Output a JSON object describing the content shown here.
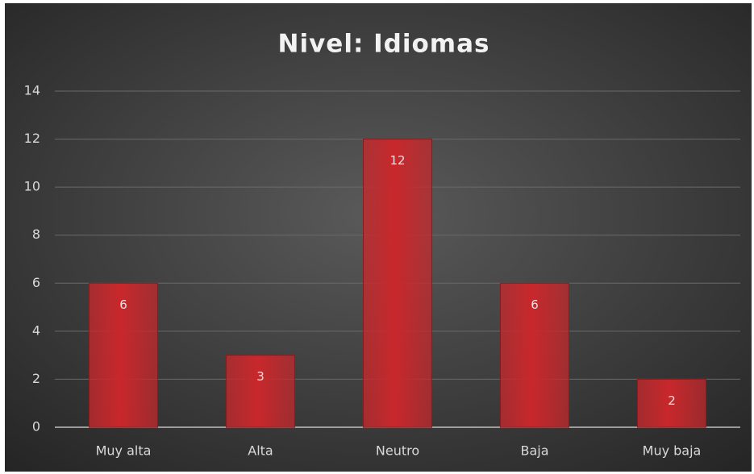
{
  "chart_data": {
    "type": "bar",
    "title": "Nivel: Idiomas",
    "categories": [
      "Muy alta",
      "Alta",
      "Neutro",
      "Baja",
      "Muy baja"
    ],
    "values": [
      6,
      3,
      12,
      6,
      2
    ],
    "color": "#c8282c",
    "ylim": [
      0,
      14
    ],
    "yticks": [
      0,
      2,
      4,
      6,
      8,
      10,
      12,
      14
    ],
    "grid": true,
    "data_labels": true
  }
}
